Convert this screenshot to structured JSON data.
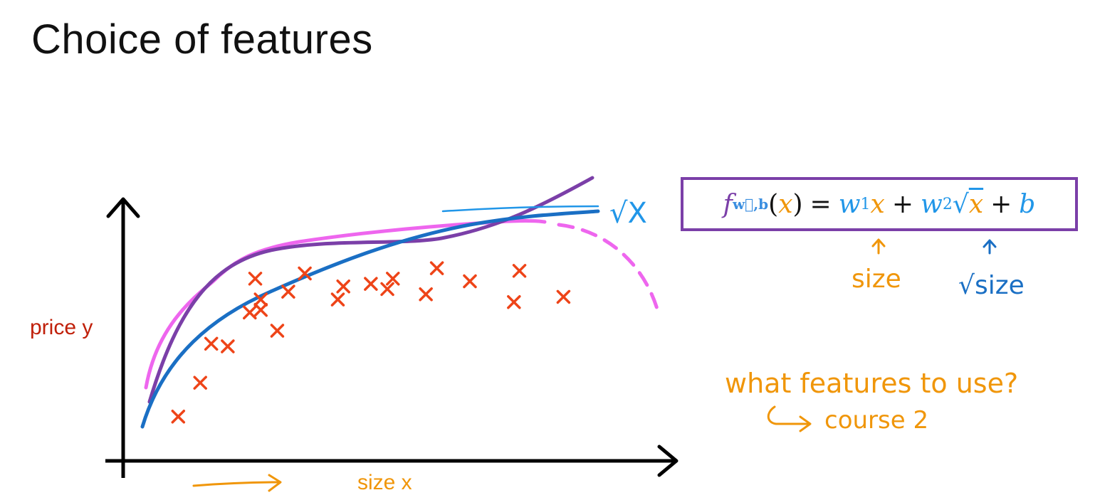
{
  "title": "Choice of features",
  "axes": {
    "y_label": "price y",
    "x_label": "size x"
  },
  "chart_data": {
    "type": "scatter",
    "title": "",
    "xlabel": "size x",
    "ylabel": "price y",
    "points": [
      [
        0.1,
        0.17
      ],
      [
        0.14,
        0.3
      ],
      [
        0.16,
        0.45
      ],
      [
        0.19,
        0.44
      ],
      [
        0.23,
        0.57
      ],
      [
        0.25,
        0.62
      ],
      [
        0.24,
        0.7
      ],
      [
        0.25,
        0.58
      ],
      [
        0.28,
        0.5
      ],
      [
        0.3,
        0.65
      ],
      [
        0.33,
        0.72
      ],
      [
        0.39,
        0.62
      ],
      [
        0.4,
        0.67
      ],
      [
        0.45,
        0.68
      ],
      [
        0.48,
        0.66
      ],
      [
        0.49,
        0.7
      ],
      [
        0.55,
        0.64
      ],
      [
        0.57,
        0.74
      ],
      [
        0.63,
        0.69
      ],
      [
        0.72,
        0.73
      ],
      [
        0.71,
        0.61
      ],
      [
        0.8,
        0.63
      ]
    ],
    "curves": [
      {
        "color": "#ee66ee",
        "style": "solid-then-dashed"
      },
      {
        "color": "#7b3fa8",
        "style": "solid"
      },
      {
        "color": "#1a6fc4",
        "style": "solid"
      }
    ],
    "point_color": "#ee4418",
    "legend": "none"
  },
  "annotations": {
    "sqrt_x": "√X",
    "formula": {
      "f": "f",
      "f_sub": "w⃗,b",
      "x": "x",
      "eq": "=",
      "w1": "w",
      "w1_sub": "1",
      "plus1": "+",
      "w2": "w",
      "w2_sub": "2",
      "sqrt": "√",
      "plus2": "+",
      "b": "b"
    },
    "size_note": "size",
    "sqrt_size_note": "√size",
    "question": "what features to use?",
    "course_ref": "course 2"
  },
  "colors": {
    "orange": "#f0960a",
    "blue": "#2196e8",
    "purple": "#7b3fa8",
    "magenta": "#ee66ee",
    "red_label": "#c0200a",
    "point": "#ee4418",
    "dark_blue_curve": "#1a6fc4"
  }
}
